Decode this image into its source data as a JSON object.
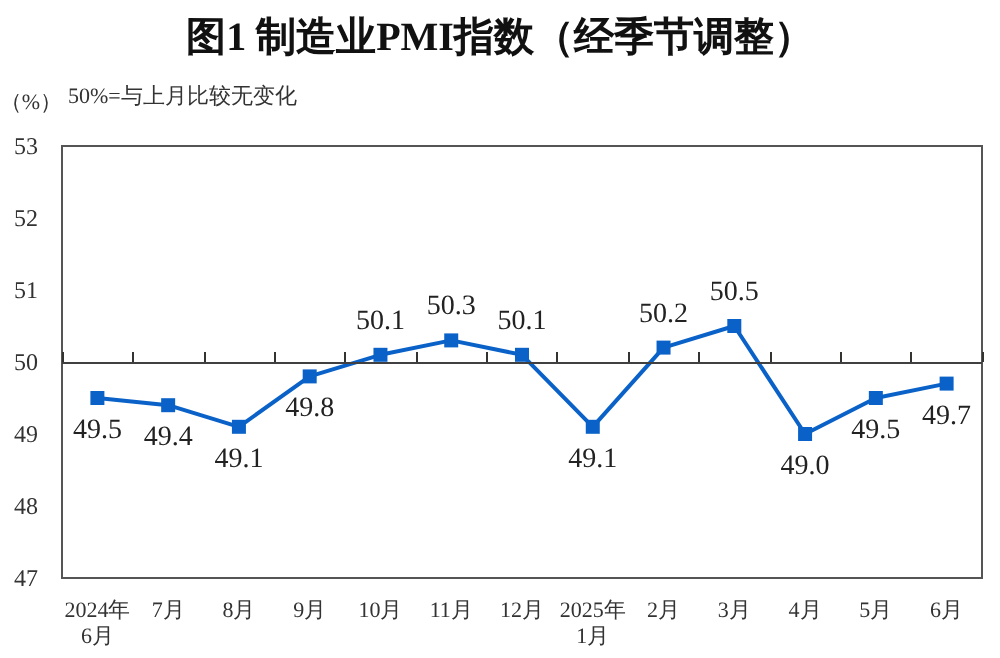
{
  "chart_data": {
    "type": "line",
    "title": "图1 制造业PMI指数（经季节调整）",
    "ylabel": "（%）",
    "annotations": [
      "50%=与上月比较无变化"
    ],
    "categories": [
      "2024年\n6月",
      "7月",
      "8月",
      "9月",
      "10月",
      "11月",
      "12月",
      "2025年\n1月",
      "2月",
      "3月",
      "4月",
      "5月",
      "6月"
    ],
    "values": [
      49.5,
      49.4,
      49.1,
      49.8,
      50.1,
      50.3,
      50.1,
      49.1,
      50.2,
      50.5,
      49.0,
      49.5,
      49.7
    ],
    "value_labels": [
      "49.5",
      "49.4",
      "49.1",
      "49.8",
      "50.1",
      "50.3",
      "50.1",
      "49.1",
      "50.2",
      "50.5",
      "49.0",
      "49.5",
      "49.7"
    ],
    "color": "#0a62c8",
    "marker": "square",
    "line_style": "solid",
    "ylim": [
      47,
      53
    ],
    "yticks": [
      47,
      48,
      49,
      50,
      51,
      52,
      53
    ],
    "ref_lines": [
      {
        "axis": "y",
        "value": 50,
        "color": "#404040"
      }
    ],
    "grid": false
  }
}
